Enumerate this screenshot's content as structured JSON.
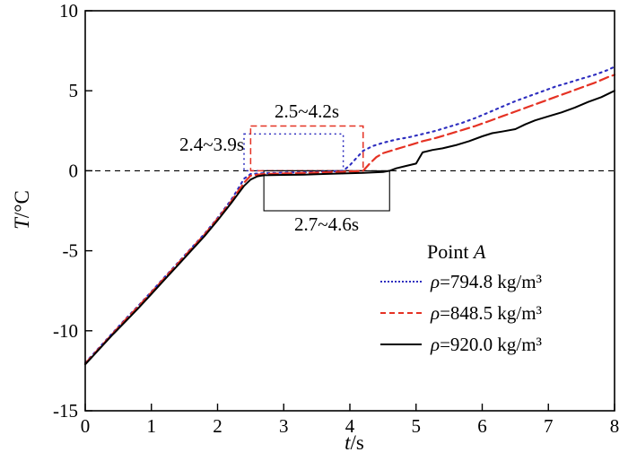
{
  "figure": {
    "xlabel_var": "t",
    "xlabel_unit": "/s",
    "ylabel_var": "T",
    "ylabel_unit": "/°C",
    "legend_title_text": "Point",
    "legend_title_var": "A"
  },
  "chart_data": {
    "type": "line",
    "title": "",
    "xlabel": "t/s",
    "ylabel": "T/°C",
    "xlim": [
      0,
      8
    ],
    "ylim": [
      -15,
      10
    ],
    "xticks": [
      0,
      1,
      2,
      3,
      4,
      5,
      6,
      7,
      8
    ],
    "yticks": [
      -15,
      -10,
      -5,
      0,
      5,
      10
    ],
    "grid": false,
    "legend_title": "Point A",
    "legend_position": "lower right",
    "reference_line": {
      "y": 0,
      "color": "#000000",
      "style": "dashed"
    },
    "annotation_boxes": [
      {
        "label": "2.4~3.9s",
        "x1": 2.4,
        "x2": 3.9,
        "y1": 0,
        "y2": 2.3,
        "color": "#2d2dbf",
        "style": "dotted"
      },
      {
        "label": "2.5~4.2s",
        "x1": 2.5,
        "x2": 4.2,
        "y1": 0,
        "y2": 2.8,
        "color": "#e53224",
        "style": "dashed"
      },
      {
        "label": "2.7~4.6s",
        "x1": 2.7,
        "x2": 4.6,
        "y1": -2.5,
        "y2": 0,
        "color": "#000000",
        "style": "solid"
      }
    ],
    "series": [
      {
        "name": "ρ=794.8 kg/m³",
        "color": "#2d2dbf",
        "style": "dotted",
        "plateau_range_s": [
          2.4,
          3.9
        ],
        "points": [
          [
            0,
            -12.0
          ],
          [
            0.2,
            -11.1
          ],
          [
            0.4,
            -10.2
          ],
          [
            0.6,
            -9.3
          ],
          [
            0.8,
            -8.45
          ],
          [
            1.0,
            -7.55
          ],
          [
            1.2,
            -6.65
          ],
          [
            1.4,
            -5.75
          ],
          [
            1.6,
            -4.85
          ],
          [
            1.8,
            -3.95
          ],
          [
            2.0,
            -2.95
          ],
          [
            2.2,
            -1.85
          ],
          [
            2.3,
            -1.2
          ],
          [
            2.4,
            -0.5
          ],
          [
            2.5,
            -0.2
          ],
          [
            2.7,
            -0.15
          ],
          [
            3.0,
            -0.12
          ],
          [
            3.3,
            -0.1
          ],
          [
            3.6,
            -0.06
          ],
          [
            3.9,
            0.0
          ],
          [
            4.0,
            0.35
          ],
          [
            4.1,
            0.8
          ],
          [
            4.2,
            1.25
          ],
          [
            4.35,
            1.55
          ],
          [
            4.5,
            1.75
          ],
          [
            4.7,
            1.95
          ],
          [
            4.9,
            2.1
          ],
          [
            5.1,
            2.3
          ],
          [
            5.3,
            2.5
          ],
          [
            5.5,
            2.75
          ],
          [
            5.7,
            3.0
          ],
          [
            5.9,
            3.3
          ],
          [
            6.1,
            3.65
          ],
          [
            6.3,
            4.0
          ],
          [
            6.5,
            4.35
          ],
          [
            6.7,
            4.65
          ],
          [
            6.9,
            4.95
          ],
          [
            7.1,
            5.25
          ],
          [
            7.3,
            5.5
          ],
          [
            7.5,
            5.75
          ],
          [
            7.7,
            6.0
          ],
          [
            7.9,
            6.3
          ],
          [
            8.0,
            6.5
          ]
        ]
      },
      {
        "name": "ρ=848.5 kg/m³",
        "color": "#e53224",
        "style": "dashed",
        "plateau_range_s": [
          2.5,
          4.2
        ],
        "points": [
          [
            0,
            -12.05
          ],
          [
            0.2,
            -11.15
          ],
          [
            0.4,
            -10.25
          ],
          [
            0.6,
            -9.35
          ],
          [
            0.8,
            -8.5
          ],
          [
            1.0,
            -7.6
          ],
          [
            1.2,
            -6.7
          ],
          [
            1.4,
            -5.8
          ],
          [
            1.6,
            -4.9
          ],
          [
            1.8,
            -4.0
          ],
          [
            2.0,
            -3.0
          ],
          [
            2.2,
            -1.95
          ],
          [
            2.3,
            -1.35
          ],
          [
            2.4,
            -0.75
          ],
          [
            2.5,
            -0.3
          ],
          [
            2.7,
            -0.2
          ],
          [
            3.0,
            -0.17
          ],
          [
            3.3,
            -0.14
          ],
          [
            3.6,
            -0.1
          ],
          [
            3.9,
            -0.06
          ],
          [
            4.1,
            -0.03
          ],
          [
            4.2,
            0.0
          ],
          [
            4.3,
            0.45
          ],
          [
            4.4,
            0.85
          ],
          [
            4.5,
            1.1
          ],
          [
            4.7,
            1.35
          ],
          [
            4.9,
            1.6
          ],
          [
            5.1,
            1.85
          ],
          [
            5.3,
            2.05
          ],
          [
            5.5,
            2.3
          ],
          [
            5.7,
            2.55
          ],
          [
            5.9,
            2.8
          ],
          [
            6.1,
            3.1
          ],
          [
            6.3,
            3.4
          ],
          [
            6.5,
            3.7
          ],
          [
            6.7,
            4.0
          ],
          [
            6.9,
            4.3
          ],
          [
            7.1,
            4.6
          ],
          [
            7.3,
            4.9
          ],
          [
            7.5,
            5.2
          ],
          [
            7.7,
            5.5
          ],
          [
            7.9,
            5.85
          ],
          [
            8.0,
            6.0
          ]
        ]
      },
      {
        "name": "ρ=920.0 kg/m³",
        "color": "#000000",
        "style": "solid",
        "plateau_range_s": [
          2.7,
          4.6
        ],
        "points": [
          [
            0,
            -12.1
          ],
          [
            0.2,
            -11.2
          ],
          [
            0.4,
            -10.3
          ],
          [
            0.6,
            -9.45
          ],
          [
            0.8,
            -8.6
          ],
          [
            1.0,
            -7.7
          ],
          [
            1.2,
            -6.8
          ],
          [
            1.4,
            -5.9
          ],
          [
            1.6,
            -5.0
          ],
          [
            1.8,
            -4.1
          ],
          [
            2.0,
            -3.1
          ],
          [
            2.2,
            -2.05
          ],
          [
            2.3,
            -1.5
          ],
          [
            2.4,
            -0.95
          ],
          [
            2.5,
            -0.55
          ],
          [
            2.6,
            -0.35
          ],
          [
            2.7,
            -0.28
          ],
          [
            3.0,
            -0.26
          ],
          [
            3.3,
            -0.24
          ],
          [
            3.6,
            -0.2
          ],
          [
            3.9,
            -0.17
          ],
          [
            4.2,
            -0.13
          ],
          [
            4.5,
            -0.08
          ],
          [
            4.6,
            0.0
          ],
          [
            4.7,
            0.15
          ],
          [
            4.85,
            0.3
          ],
          [
            5.0,
            0.45
          ],
          [
            5.05,
            0.8
          ],
          [
            5.1,
            1.15
          ],
          [
            5.25,
            1.3
          ],
          [
            5.4,
            1.4
          ],
          [
            5.6,
            1.6
          ],
          [
            5.8,
            1.85
          ],
          [
            6.0,
            2.15
          ],
          [
            6.15,
            2.35
          ],
          [
            6.3,
            2.45
          ],
          [
            6.5,
            2.6
          ],
          [
            6.65,
            2.9
          ],
          [
            6.8,
            3.15
          ],
          [
            7.0,
            3.4
          ],
          [
            7.2,
            3.65
          ],
          [
            7.4,
            3.95
          ],
          [
            7.6,
            4.3
          ],
          [
            7.8,
            4.6
          ],
          [
            8.0,
            5.0
          ]
        ]
      }
    ]
  }
}
